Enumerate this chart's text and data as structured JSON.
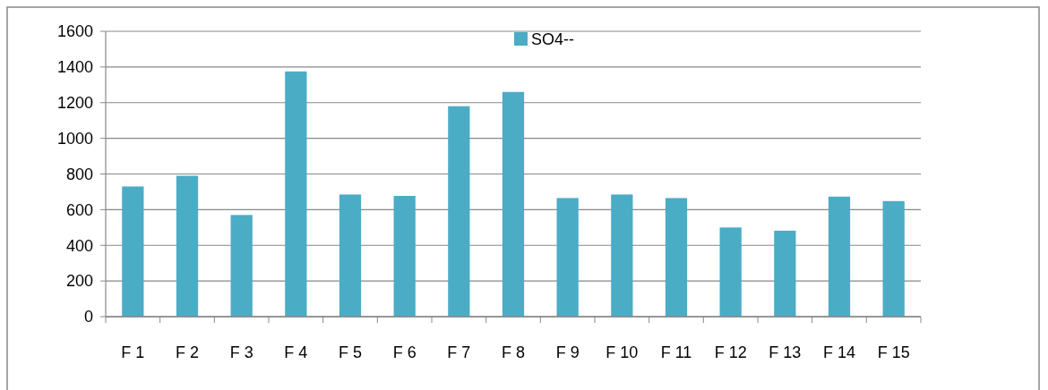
{
  "chart_data": {
    "type": "bar",
    "categories": [
      "F 1",
      "F 2",
      "F 3",
      "F 4",
      "F 5",
      "F 6",
      "F 7",
      "F 8",
      "F 9",
      "F 10",
      "F 11",
      "F 12",
      "F 13",
      "F 14",
      "F 15"
    ],
    "series": [
      {
        "name": "SO4--",
        "color": "#4bacc6",
        "values": [
          730,
          790,
          570,
          1375,
          685,
          677,
          1180,
          1260,
          665,
          685,
          665,
          500,
          482,
          673,
          648
        ]
      }
    ],
    "ylim": [
      0,
      1600
    ],
    "yticks": [
      0,
      200,
      400,
      600,
      800,
      1000,
      1200,
      1400,
      1600
    ],
    "grid": "y",
    "legend": "top"
  }
}
